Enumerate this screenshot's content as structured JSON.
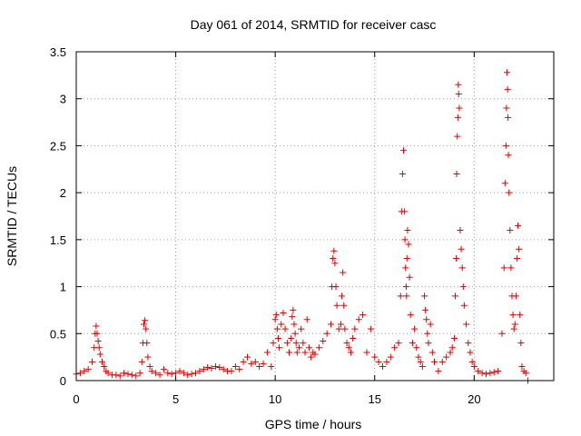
{
  "chart_data": {
    "type": "scatter",
    "title": "Day 061 of 2014, SRMTID for receiver casc",
    "xlabel": "GPS time / hours",
    "ylabel": "SRMTID / TECUs",
    "xlim": [
      0,
      24
    ],
    "ylim": [
      0,
      3.5
    ],
    "xticks": [
      0,
      5,
      10,
      15,
      20
    ],
    "xtick_labels": [
      "0",
      "5",
      "10",
      "15",
      "20"
    ],
    "yticks": [
      0,
      0.5,
      1,
      1.5,
      2,
      2.5,
      3,
      3.5
    ],
    "ytick_labels": [
      "0",
      "0.5",
      "1",
      "1.5",
      "2",
      "2.5",
      "3",
      "3.5"
    ],
    "grid": true,
    "marker": "+",
    "color": "#e00000",
    "series": [
      {
        "name": "SRMTID",
        "x": [
          0.0,
          0.2,
          0.4,
          0.6,
          0.8,
          0.9,
          0.95,
          1.0,
          1.05,
          1.1,
          1.15,
          1.2,
          1.3,
          1.4,
          1.5,
          1.6,
          1.8,
          2.0,
          2.2,
          2.4,
          2.6,
          2.8,
          3.0,
          3.2,
          3.3,
          3.35,
          3.4,
          3.45,
          3.5,
          3.55,
          3.6,
          3.7,
          3.8,
          4.0,
          4.2,
          4.4,
          4.6,
          4.8,
          5.0,
          5.2,
          5.4,
          5.6,
          5.8,
          6.0,
          6.2,
          6.4,
          6.6,
          6.8,
          7.0,
          7.2,
          7.4,
          7.6,
          7.8,
          8.0,
          8.2,
          8.4,
          8.6,
          8.8,
          9.0,
          9.2,
          9.4,
          9.6,
          9.8,
          9.9,
          10.0,
          10.05,
          10.1,
          10.15,
          10.2,
          10.3,
          10.4,
          10.5,
          10.6,
          10.7,
          10.8,
          10.85,
          10.9,
          10.95,
          11.0,
          11.05,
          11.1,
          11.2,
          11.3,
          11.4,
          11.5,
          11.6,
          11.7,
          11.8,
          11.9,
          12.0,
          12.2,
          12.4,
          12.6,
          12.8,
          12.85,
          12.9,
          12.95,
          13.0,
          13.05,
          13.1,
          13.2,
          13.3,
          13.35,
          13.4,
          13.45,
          13.5,
          13.6,
          13.7,
          13.8,
          13.9,
          14.0,
          14.2,
          14.4,
          14.6,
          14.8,
          15.0,
          15.2,
          15.4,
          15.6,
          15.8,
          16.0,
          16.2,
          16.3,
          16.35,
          16.4,
          16.45,
          16.5,
          16.52,
          16.55,
          16.58,
          16.6,
          16.62,
          16.65,
          16.7,
          16.75,
          16.8,
          16.9,
          17.0,
          17.1,
          17.2,
          17.3,
          17.4,
          17.5,
          17.55,
          17.6,
          17.65,
          17.7,
          17.8,
          17.9,
          18.0,
          18.2,
          18.4,
          18.6,
          18.8,
          18.9,
          19.0,
          19.05,
          19.1,
          19.12,
          19.15,
          19.18,
          19.2,
          19.22,
          19.25,
          19.3,
          19.35,
          19.4,
          19.45,
          19.5,
          19.6,
          19.7,
          19.8,
          19.9,
          20.0,
          20.2,
          20.4,
          20.6,
          20.8,
          21.0,
          21.2,
          21.4,
          21.5,
          21.55,
          21.6,
          21.62,
          21.65,
          21.68,
          21.7,
          21.72,
          21.75,
          21.8,
          21.85,
          21.9,
          21.95,
          22.0,
          22.05,
          22.1,
          22.15,
          22.2,
          22.25,
          22.3,
          22.35,
          22.4,
          22.5,
          22.6,
          22.7
        ],
        "y": [
          0.07,
          0.08,
          0.1,
          0.12,
          0.2,
          0.35,
          0.5,
          0.58,
          0.5,
          0.42,
          0.35,
          0.28,
          0.2,
          0.15,
          0.1,
          0.08,
          0.06,
          0.06,
          0.05,
          0.08,
          0.07,
          0.06,
          0.05,
          0.08,
          0.2,
          0.4,
          0.6,
          0.64,
          0.55,
          0.4,
          0.25,
          0.15,
          0.1,
          0.08,
          0.06,
          0.12,
          0.08,
          0.07,
          0.08,
          0.1,
          0.08,
          0.06,
          0.07,
          0.08,
          0.1,
          0.12,
          0.14,
          0.13,
          0.15,
          0.14,
          0.12,
          0.1,
          0.1,
          0.15,
          0.12,
          0.2,
          0.25,
          0.18,
          0.2,
          0.15,
          0.18,
          0.3,
          0.15,
          0.4,
          0.65,
          0.7,
          0.55,
          0.45,
          0.35,
          0.6,
          0.72,
          0.55,
          0.4,
          0.3,
          0.45,
          0.68,
          0.75,
          0.6,
          0.5,
          0.4,
          0.3,
          0.35,
          0.55,
          0.4,
          0.3,
          0.65,
          0.35,
          0.25,
          0.3,
          0.28,
          0.35,
          0.42,
          0.5,
          0.6,
          1.0,
          1.3,
          1.38,
          1.25,
          1.0,
          0.8,
          0.55,
          0.6,
          0.9,
          1.15,
          0.8,
          0.55,
          0.4,
          0.35,
          0.3,
          0.45,
          0.55,
          0.65,
          0.7,
          0.3,
          0.55,
          0.25,
          0.2,
          0.15,
          0.2,
          0.25,
          0.35,
          0.4,
          0.9,
          1.8,
          2.2,
          2.45,
          1.8,
          1.5,
          1.2,
          1.0,
          0.9,
          1.3,
          1.6,
          1.45,
          1.1,
          0.7,
          0.4,
          0.55,
          0.35,
          0.25,
          0.2,
          0.15,
          0.9,
          0.75,
          0.65,
          0.5,
          0.4,
          0.6,
          0.3,
          0.2,
          0.1,
          0.2,
          0.25,
          0.3,
          0.35,
          0.45,
          0.9,
          1.3,
          2.2,
          2.6,
          2.8,
          3.15,
          3.05,
          2.9,
          1.6,
          1.4,
          1.2,
          1.0,
          0.8,
          0.6,
          0.4,
          0.3,
          0.2,
          0.15,
          0.1,
          0.08,
          0.07,
          0.08,
          0.09,
          0.1,
          0.5,
          1.2,
          2.1,
          2.5,
          2.9,
          3.28,
          3.1,
          2.8,
          2.4,
          2.0,
          1.6,
          1.2,
          0.9,
          0.7,
          0.55,
          0.6,
          0.9,
          1.3,
          1.65,
          1.4,
          0.7,
          0.4,
          0.15,
          0.1,
          0.08,
          0.0
        ]
      }
    ]
  }
}
